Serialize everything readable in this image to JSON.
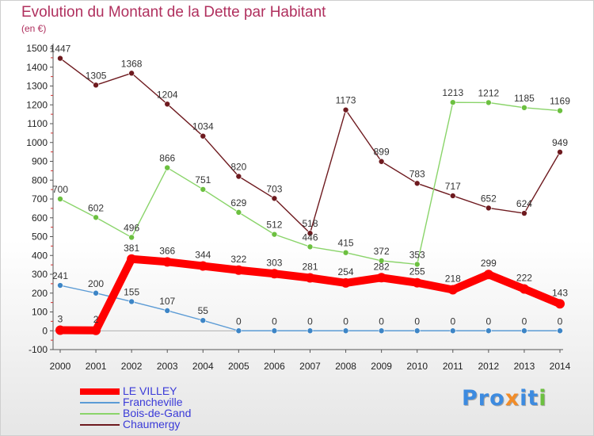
{
  "chart_data": {
    "type": "line",
    "title": "Evolution du Montant de la Dette par Habitant",
    "subtitle": "(en €)",
    "x": [
      "2000",
      "2001",
      "2002",
      "2003",
      "2004",
      "2005",
      "2006",
      "2007",
      "2008",
      "2009",
      "2010",
      "2011",
      "2012",
      "2013",
      "2014"
    ],
    "ylim": [
      -100,
      1500
    ],
    "yticks": [
      -100,
      0,
      100,
      200,
      300,
      400,
      500,
      600,
      700,
      800,
      900,
      1000,
      1100,
      1200,
      1300,
      1400,
      1500
    ],
    "grid": false,
    "legend_position": "bottom-left",
    "series": [
      {
        "name": "Chaumergy",
        "color": "#6e1a1f",
        "point_color": "#6e1a1f",
        "values": [
          1447,
          1305,
          1368,
          1204,
          1034,
          820,
          703,
          518,
          1173,
          899,
          783,
          717,
          652,
          624,
          949
        ]
      },
      {
        "name": "Bois-de-Gand",
        "color": "#8ad46a",
        "point_color": "#6cc040",
        "values": [
          700,
          602,
          496,
          866,
          751,
          629,
          512,
          446,
          415,
          372,
          353,
          1213,
          1212,
          1185,
          1169
        ]
      },
      {
        "name": "Francheville",
        "color": "#5b9bd5",
        "point_color": "#3d85c6",
        "values": [
          241,
          200,
          155,
          107,
          55,
          0,
          0,
          0,
          0,
          0,
          0,
          0,
          0,
          0,
          0
        ]
      },
      {
        "name": "LE VILLEY",
        "color": "#ff0000",
        "point_color": "#ff0000",
        "values": [
          3,
          2,
          381,
          366,
          344,
          322,
          303,
          281,
          254,
          282,
          255,
          218,
          299,
          222,
          143
        ]
      }
    ]
  },
  "legend": [
    {
      "label": "LE VILLEY",
      "color": "#ff0000",
      "bold": true
    },
    {
      "label": "Francheville",
      "color": "#5b9bd5",
      "bold": false
    },
    {
      "label": "Bois-de-Gand",
      "color": "#8ad46a",
      "bold": false
    },
    {
      "label": "Chaumergy",
      "color": "#6e1a1f",
      "bold": false
    }
  ],
  "brand": {
    "text": "Proxiti",
    "letter_colors": [
      "#3d8be0",
      "#3d8be0",
      "#3d8be0",
      "#f28c28",
      "#3d8be0",
      "#3d8be0",
      "#6cc040"
    ]
  }
}
